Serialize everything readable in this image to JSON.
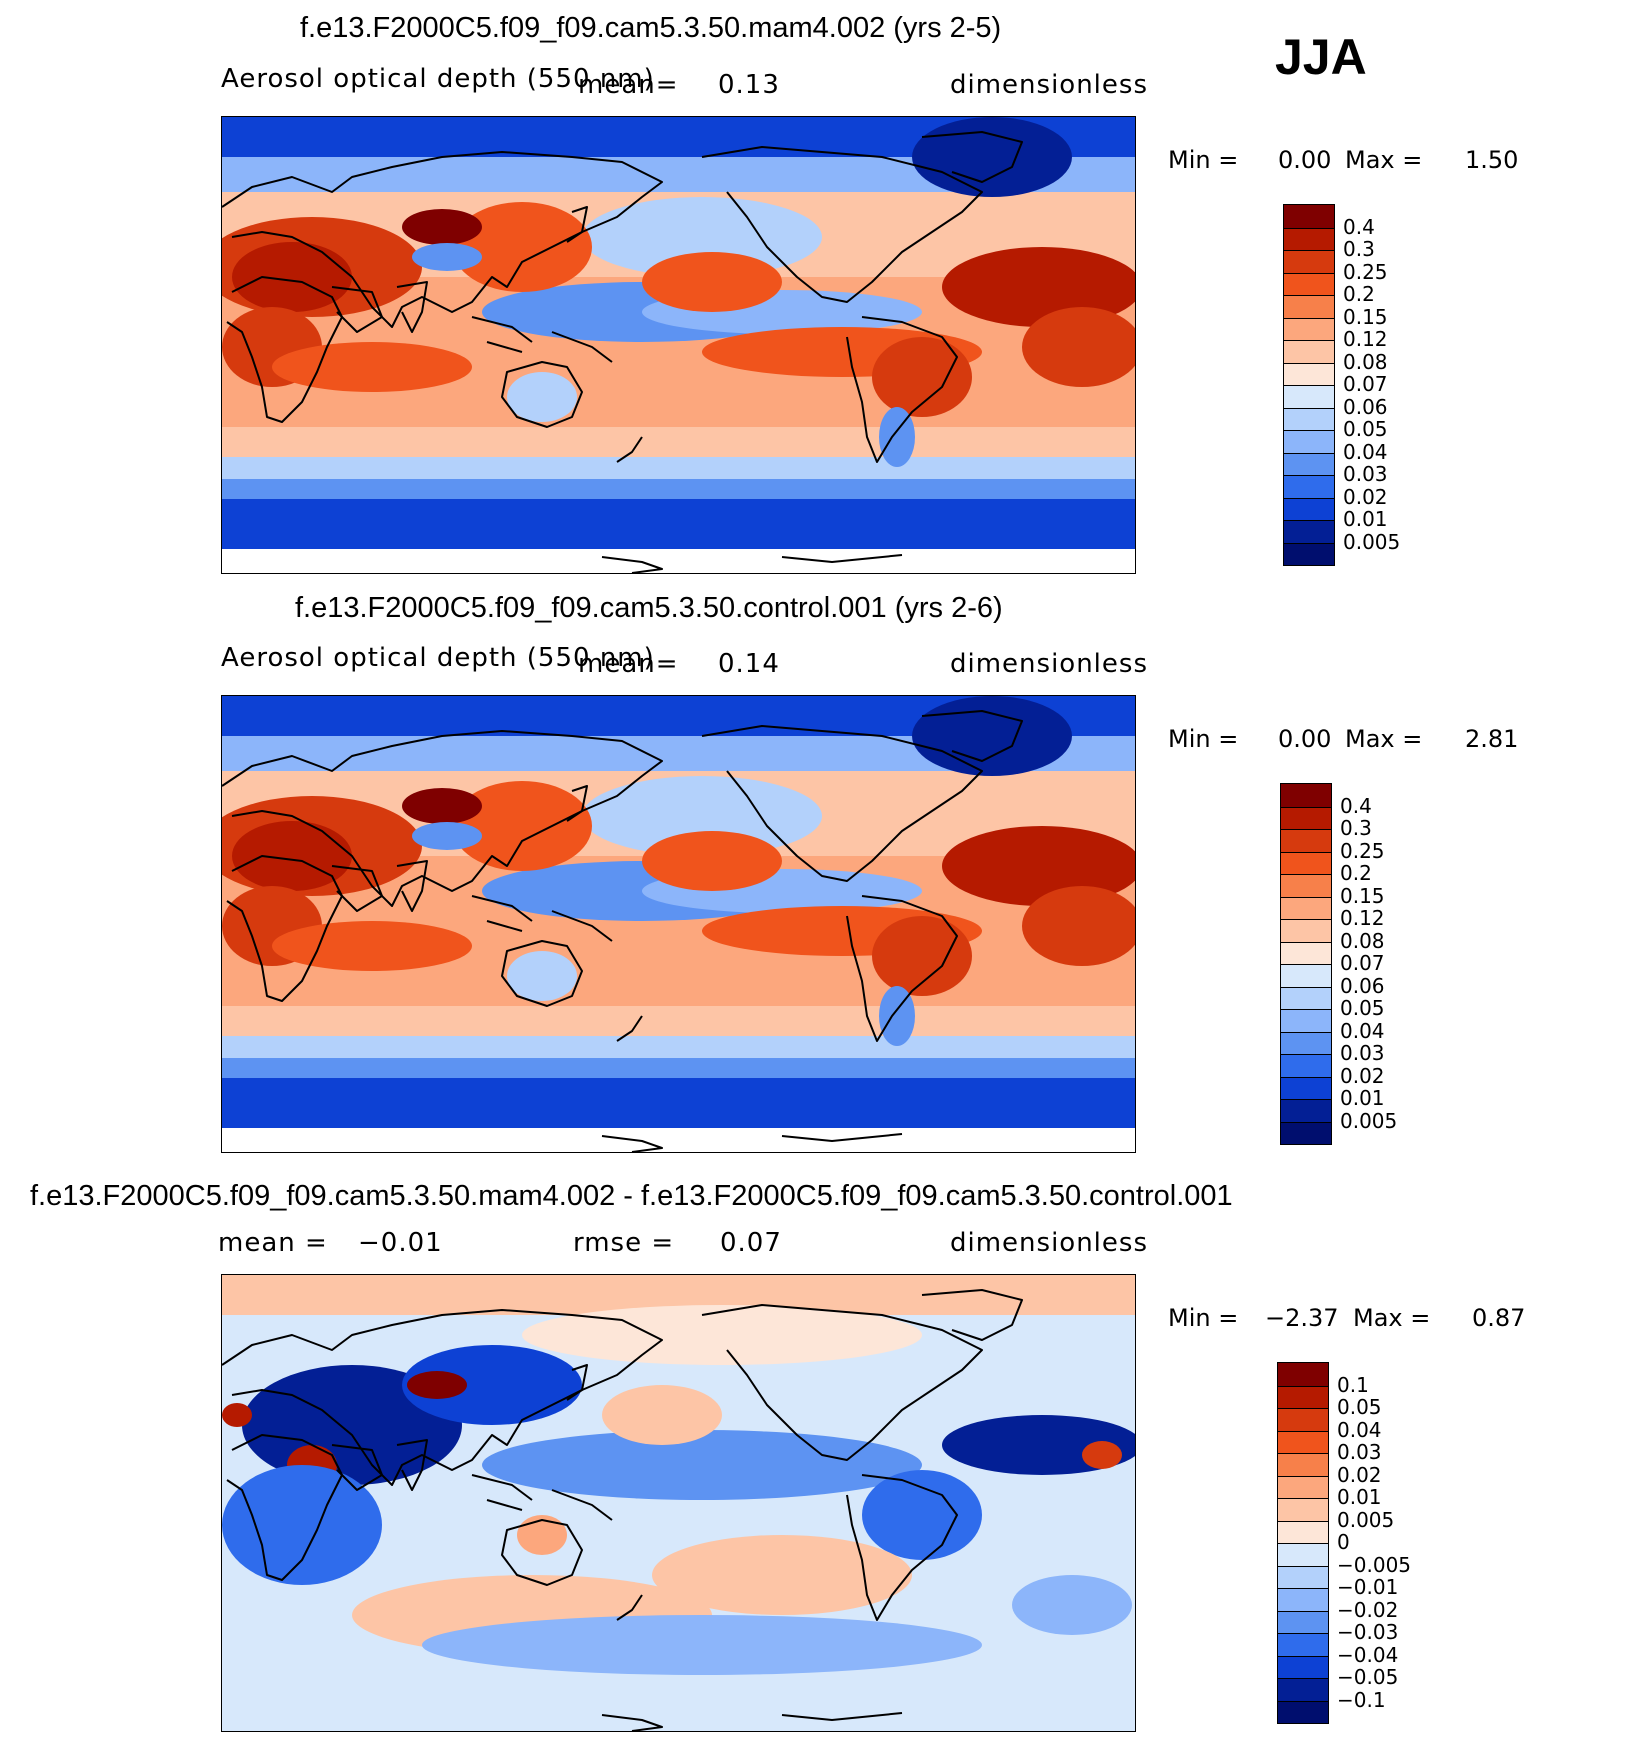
{
  "season": "JJA",
  "chart_data": [
    {
      "type": "heatmap",
      "title": "f.e13.F2000C5.f09_f09.cam5.3.50.mam4.002 (yrs 2-5)",
      "variable": "Aerosol optical depth (550 nm)",
      "mean_label": "mean=",
      "mean": "0.13",
      "units": "dimensionless",
      "min_label": "Min =",
      "min": "0.00",
      "max_label": "Max =",
      "max": "1.50",
      "levels": [
        "0.4",
        "0.3",
        "0.25",
        "0.2",
        "0.15",
        "0.12",
        "0.08",
        "0.07",
        "0.06",
        "0.05",
        "0.04",
        "0.03",
        "0.02",
        "0.01",
        "0.005"
      ],
      "colors": [
        "#7f0000",
        "#b51a00",
        "#d63a0e",
        "#f0541c",
        "#f7804a",
        "#fca77d",
        "#fdc5a6",
        "#fde6d8",
        "#d7e8fb",
        "#b3d1fb",
        "#8cb5fa",
        "#5d93f2",
        "#2f6cec",
        "#0d41d4",
        "#031f95",
        "#000e6e"
      ]
    },
    {
      "type": "heatmap",
      "title": "f.e13.F2000C5.f09_f09.cam5.3.50.control.001 (yrs 2-6)",
      "variable": "Aerosol optical depth (550 nm)",
      "mean_label": "mean=",
      "mean": "0.14",
      "units": "dimensionless",
      "min_label": "Min =",
      "min": "0.00",
      "max_label": "Max =",
      "max": "2.81",
      "levels": [
        "0.4",
        "0.3",
        "0.25",
        "0.2",
        "0.15",
        "0.12",
        "0.08",
        "0.07",
        "0.06",
        "0.05",
        "0.04",
        "0.03",
        "0.02",
        "0.01",
        "0.005"
      ],
      "colors": [
        "#7f0000",
        "#b51a00",
        "#d63a0e",
        "#f0541c",
        "#f7804a",
        "#fca77d",
        "#fdc5a6",
        "#fde6d8",
        "#d7e8fb",
        "#b3d1fb",
        "#8cb5fa",
        "#5d93f2",
        "#2f6cec",
        "#0d41d4",
        "#031f95",
        "#000e6e"
      ]
    },
    {
      "type": "heatmap",
      "title": "f.e13.F2000C5.f09_f09.cam5.3.50.mam4.002 - f.e13.F2000C5.f09_f09.cam5.3.50.control.001",
      "mean_label": "mean =",
      "mean": "−0.01",
      "rmse_label": "rmse =",
      "rmse": "0.07",
      "units": "dimensionless",
      "min_label": "Min =",
      "min": "−2.37",
      "max_label": "Max =",
      "max": "0.87",
      "levels": [
        "0.1",
        "0.05",
        "0.04",
        "0.03",
        "0.02",
        "0.01",
        "0.005",
        "0",
        "−0.005",
        "−0.01",
        "−0.02",
        "−0.03",
        "−0.04",
        "−0.05",
        "−0.1"
      ],
      "colors": [
        "#7f0000",
        "#b51a00",
        "#d63a0e",
        "#f0541c",
        "#f7804a",
        "#fca77d",
        "#fdc5a6",
        "#fde6d8",
        "#d7e8fb",
        "#b3d1fb",
        "#8cb5fa",
        "#5d93f2",
        "#2f6cec",
        "#0d41d4",
        "#031f95",
        "#000e6e"
      ]
    }
  ]
}
